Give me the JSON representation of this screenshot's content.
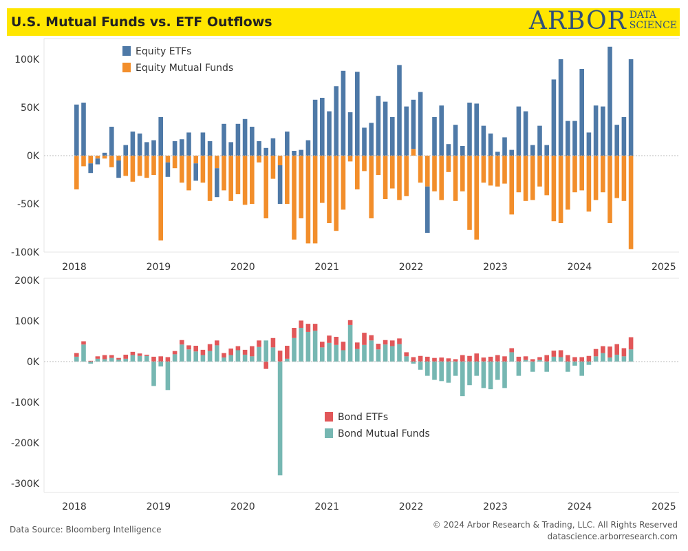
{
  "header": {
    "title": "U.S. Mutual Funds vs. ETF Outflows",
    "logo_main": "ARBOR",
    "logo_sub_1": "DATA",
    "logo_sub_2": "SCIENCE"
  },
  "footer": {
    "source": "Data Source: Bloomberg Intelligence",
    "copyright": "© 2024 Arbor Research & Trading, LLC. All Rights Reserved",
    "website": "datascience.arborresearch.com"
  },
  "colors": {
    "equity_etf": "#4e79a7",
    "equity_mf": "#f28e2b",
    "bond_etf": "#e15759",
    "bond_mf": "#76b7b2"
  },
  "chart_data": [
    {
      "type": "bar",
      "stacked": "diverging",
      "x_start": "2018-01",
      "x_axis_ticks": [
        "2018",
        "2019",
        "2020",
        "2021",
        "2022",
        "2023",
        "2024",
        "2025"
      ],
      "y_axis_ticks": [
        "100K",
        "50K",
        "0K",
        "-50K",
        "-100K"
      ],
      "ylim": [
        -108000,
        120000
      ],
      "legend_position": "top-left",
      "series": [
        {
          "name": "Equity ETFs",
          "values": [
            53000,
            55000,
            -10000,
            -6000,
            3000,
            30000,
            -18000,
            11000,
            25000,
            23000,
            14000,
            16000,
            40000,
            -15000,
            15000,
            17000,
            24000,
            -18000,
            24000,
            15000,
            -30000,
            33000,
            14000,
            33000,
            38000,
            30000,
            15000,
            8000,
            18000,
            -40000,
            25000,
            5000,
            6000,
            16000,
            58000,
            60000,
            46000,
            72000,
            88000,
            45000,
            87000,
            29000,
            34000,
            62000,
            56000,
            40000,
            94000,
            51000,
            51000,
            66000,
            -48000,
            40000,
            52000,
            12000,
            32000,
            10000,
            55000,
            54000,
            31000,
            23000,
            4000,
            19000,
            6000,
            51000,
            46000,
            11000,
            31000,
            11000,
            79000,
            100000,
            36000,
            36000,
            90000,
            24000,
            52000,
            51000,
            113000,
            32000,
            40000,
            100000
          ]
        },
        {
          "name": "Equity Mutual Funds",
          "values": [
            -35000,
            -11000,
            -8000,
            -3000,
            -3000,
            -12000,
            -5000,
            -21000,
            -27000,
            -21000,
            -23000,
            -20000,
            -88000,
            -7000,
            -13000,
            -28000,
            -36000,
            -8000,
            -28000,
            -47000,
            -13000,
            -36000,
            -47000,
            -40000,
            -51000,
            -50000,
            -7000,
            -65000,
            -24000,
            -10000,
            -50000,
            -87000,
            -65000,
            -91000,
            -91000,
            -49000,
            -70000,
            -78000,
            -56000,
            -6000,
            -35000,
            -16000,
            -65000,
            -20000,
            -45000,
            -34000,
            -46000,
            -42000,
            7000,
            -28000,
            -32000,
            -37000,
            -46000,
            -17000,
            -47000,
            -37000,
            -77000,
            -87000,
            -28000,
            -31000,
            -32000,
            -29000,
            -61000,
            -38000,
            -47000,
            -46000,
            -32000,
            -41000,
            -68000,
            -70000,
            -56000,
            -38000,
            -36000,
            -58000,
            -46000,
            -38000,
            -70000,
            -44000,
            -47000,
            -97000
          ]
        }
      ]
    },
    {
      "type": "bar",
      "stacked": "diverging",
      "x_start": "2018-01",
      "x_axis_ticks": [
        "2018",
        "2019",
        "2020",
        "2021",
        "2022",
        "2023",
        "2024",
        "2025"
      ],
      "y_axis_ticks": [
        "200K",
        "100K",
        "0K",
        "-100K",
        "-200K",
        "-300K"
      ],
      "ylim": [
        -315000,
        210000
      ],
      "legend_position": "center",
      "series": [
        {
          "name": "Bond ETFs",
          "values": [
            9000,
            8000,
            2000,
            6000,
            10000,
            7000,
            4000,
            10000,
            8000,
            6000,
            3000,
            12000,
            13000,
            11000,
            8000,
            11000,
            10000,
            14000,
            13000,
            17000,
            12000,
            11000,
            16000,
            10000,
            12000,
            25000,
            16000,
            -18000,
            23000,
            27000,
            32000,
            25000,
            18000,
            20000,
            17000,
            14000,
            18000,
            20000,
            21000,
            12000,
            16000,
            30000,
            13000,
            14000,
            11000,
            14000,
            14000,
            10000,
            11000,
            14000,
            12000,
            9000,
            10000,
            8000,
            6000,
            16000,
            14000,
            20000,
            10000,
            12000,
            16000,
            13000,
            10000,
            12000,
            9000,
            6000,
            7000,
            16000,
            15000,
            17000,
            16000,
            11000,
            11000,
            14000,
            18000,
            17000,
            27000,
            26000,
            20000,
            30000
          ]
        },
        {
          "name": "Bond Mutual Funds",
          "values": [
            12000,
            42000,
            -5000,
            7000,
            6000,
            9000,
            5000,
            7000,
            16000,
            14000,
            14000,
            -60000,
            -12000,
            -70000,
            18000,
            42000,
            30000,
            25000,
            16000,
            26000,
            40000,
            10000,
            16000,
            28000,
            17000,
            13000,
            36000,
            52000,
            35000,
            -280000,
            7000,
            58000,
            83000,
            73000,
            76000,
            35000,
            46000,
            41000,
            28000,
            90000,
            31000,
            41000,
            52000,
            30000,
            42000,
            38000,
            43000,
            13000,
            -5000,
            -20000,
            -35000,
            -45000,
            -48000,
            -52000,
            -35000,
            -85000,
            -58000,
            -35000,
            -65000,
            -68000,
            -45000,
            -65000,
            23000,
            -35000,
            4000,
            -25000,
            4000,
            -25000,
            12000,
            11000,
            -25000,
            -10000,
            -35000,
            -8000,
            13000,
            21000,
            10000,
            17000,
            13000,
            30000
          ]
        }
      ]
    }
  ]
}
